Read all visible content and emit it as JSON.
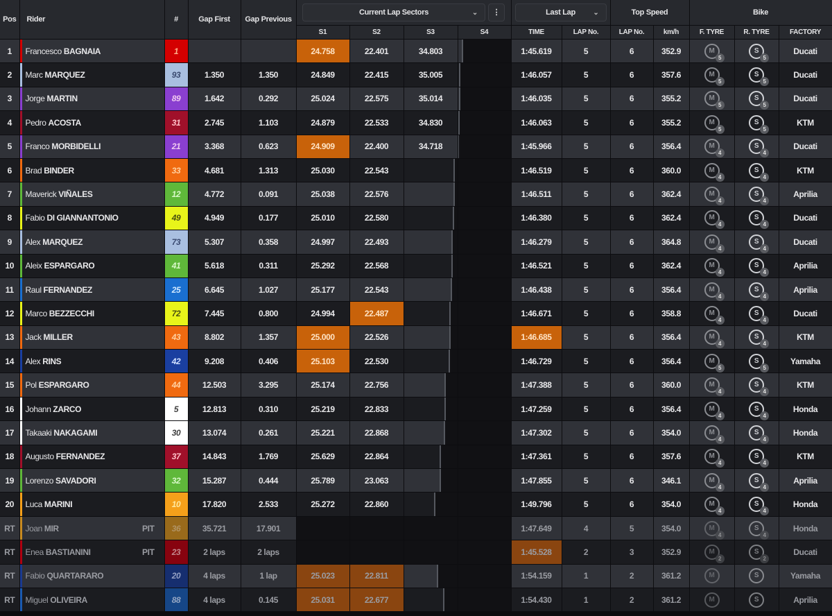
{
  "header": {
    "pos": "Pos",
    "rider": "Rider",
    "number": "#",
    "gap_first": "Gap First",
    "gap_previous": "Gap Previous",
    "sectors_dropdown": "Current Lap Sectors",
    "last_lap_dropdown": "Last Lap",
    "top_speed": "Top Speed",
    "bike": "Bike",
    "s1": "S1",
    "s2": "S2",
    "s3": "S3",
    "s4": "S4",
    "time": "TIME",
    "lap_no": "LAP No.",
    "lap_no_speed": "LAP No.",
    "kmh": "km/h",
    "f_tyre": "F. TYRE",
    "r_tyre": "R. TYRE",
    "factory": "FACTORY"
  },
  "colors": {
    "highlight": "#c8620a",
    "row_odd": "#303238",
    "row_even": "#1b1c20"
  },
  "tyre_letters": {
    "front": "M",
    "rear": "S"
  },
  "rows": [
    {
      "pos": "1",
      "first": "Francesco",
      "last": "BAGNAIA",
      "num": "1",
      "color": "#d40000",
      "numText": "#ffb08a",
      "gap_first": "",
      "gap_prev": "",
      "s1": "24.758",
      "s2": "22.401",
      "s3": "34.803",
      "s4": "",
      "progress_sector": "s4",
      "progress": 0.1,
      "time": "1:45.619",
      "lap": "5",
      "ts_lap": "6",
      "kmh": "352.9",
      "ft": "5",
      "rt": "5",
      "factory": "Ducati",
      "best": [
        "s1"
      ]
    },
    {
      "pos": "2",
      "first": "Marc",
      "last": "MARQUEZ",
      "num": "93",
      "color": "#a9bfe0",
      "numText": "#3a4a70",
      "gap_first": "1.350",
      "gap_prev": "1.350",
      "s1": "24.849",
      "s2": "22.415",
      "s3": "35.005",
      "s4": "",
      "progress_sector": "s4",
      "progress": 0.05,
      "time": "1:46.057",
      "lap": "5",
      "ts_lap": "6",
      "kmh": "357.6",
      "ft": "5",
      "rt": "5",
      "factory": "Ducati",
      "best": []
    },
    {
      "pos": "3",
      "first": "Jorge",
      "last": "MARTIN",
      "num": "89",
      "color": "#8a3fd0",
      "numText": "#f0c8f0",
      "gap_first": "1.642",
      "gap_prev": "0.292",
      "s1": "25.024",
      "s2": "22.575",
      "s3": "35.014",
      "s4": "",
      "progress_sector": "s4",
      "progress": 0.04,
      "time": "1:46.035",
      "lap": "5",
      "ts_lap": "6",
      "kmh": "355.2",
      "ft": "5",
      "rt": "5",
      "factory": "Ducati",
      "best": []
    },
    {
      "pos": "4",
      "first": "Pedro",
      "last": "ACOSTA",
      "num": "31",
      "color": "#a0102a",
      "numText": "#ffc0c8",
      "gap_first": "2.745",
      "gap_prev": "1.103",
      "s1": "24.879",
      "s2": "22.533",
      "s3": "34.830",
      "s4": "",
      "progress_sector": "s4",
      "progress": 0.03,
      "time": "1:46.063",
      "lap": "5",
      "ts_lap": "6",
      "kmh": "355.2",
      "ft": "5",
      "rt": "5",
      "factory": "KTM",
      "best": []
    },
    {
      "pos": "5",
      "first": "Franco",
      "last": "MORBIDELLI",
      "num": "21",
      "color": "#8a3fd0",
      "numText": "#f0c8f0",
      "gap_first": "3.368",
      "gap_prev": "0.623",
      "s1": "24.909",
      "s2": "22.400",
      "s3": "34.718",
      "s4": "",
      "progress_sector": "s4",
      "progress": 0.02,
      "time": "1:45.966",
      "lap": "5",
      "ts_lap": "6",
      "kmh": "356.4",
      "ft": "4",
      "rt": "4",
      "factory": "Ducati",
      "best": [
        "s1"
      ]
    },
    {
      "pos": "6",
      "first": "Brad",
      "last": "BINDER",
      "num": "33",
      "color": "#f06a10",
      "numText": "#ffd0a0",
      "gap_first": "4.681",
      "gap_prev": "1.313",
      "s1": "25.030",
      "s2": "22.543",
      "s3": "",
      "s4": "",
      "progress_sector": "s3",
      "progress": 0.95,
      "time": "1:46.519",
      "lap": "5",
      "ts_lap": "6",
      "kmh": "360.0",
      "ft": "4",
      "rt": "4",
      "factory": "KTM",
      "best": []
    },
    {
      "pos": "7",
      "first": "Maverick",
      "last": "VIÑALES",
      "num": "12",
      "color": "#5fb83a",
      "numText": "#d8f8c8",
      "gap_first": "4.772",
      "gap_prev": "0.091",
      "s1": "25.038",
      "s2": "22.576",
      "s3": "",
      "s4": "",
      "progress_sector": "s3",
      "progress": 0.95,
      "time": "1:46.511",
      "lap": "5",
      "ts_lap": "6",
      "kmh": "362.4",
      "ft": "4",
      "rt": "4",
      "factory": "Aprilia",
      "best": []
    },
    {
      "pos": "8",
      "first": "Fabio",
      "last": "DI GIANNANTONIO",
      "num": "49",
      "color": "#e8f41a",
      "numText": "#4a5010",
      "gap_first": "4.949",
      "gap_prev": "0.177",
      "s1": "25.010",
      "s2": "22.580",
      "s3": "",
      "s4": "",
      "progress_sector": "s3",
      "progress": 0.94,
      "time": "1:46.380",
      "lap": "5",
      "ts_lap": "6",
      "kmh": "362.4",
      "ft": "4",
      "rt": "4",
      "factory": "Ducati",
      "best": []
    },
    {
      "pos": "9",
      "first": "Alex",
      "last": "MARQUEZ",
      "num": "73",
      "color": "#a9bfe0",
      "numText": "#3a4a70",
      "gap_first": "5.307",
      "gap_prev": "0.358",
      "s1": "24.997",
      "s2": "22.493",
      "s3": "",
      "s4": "",
      "progress_sector": "s3",
      "progress": 0.92,
      "time": "1:46.279",
      "lap": "5",
      "ts_lap": "6",
      "kmh": "364.8",
      "ft": "4",
      "rt": "4",
      "factory": "Ducati",
      "best": []
    },
    {
      "pos": "10",
      "first": "Aleix",
      "last": "ESPARGARO",
      "num": "41",
      "color": "#5fb83a",
      "numText": "#d8f8c8",
      "gap_first": "5.618",
      "gap_prev": "0.311",
      "s1": "25.292",
      "s2": "22.568",
      "s3": "",
      "s4": "",
      "progress_sector": "s3",
      "progress": 0.91,
      "time": "1:46.521",
      "lap": "5",
      "ts_lap": "6",
      "kmh": "362.4",
      "ft": "4",
      "rt": "4",
      "factory": "Aprilia",
      "best": []
    },
    {
      "pos": "11",
      "first": "Raul",
      "last": "FERNANDEZ",
      "num": "25",
      "color": "#1a6fd0",
      "numText": "#d0e8ff",
      "gap_first": "6.645",
      "gap_prev": "1.027",
      "s1": "25.177",
      "s2": "22.543",
      "s3": "",
      "s4": "",
      "progress_sector": "s3",
      "progress": 0.9,
      "time": "1:46.438",
      "lap": "5",
      "ts_lap": "6",
      "kmh": "356.4",
      "ft": "4",
      "rt": "4",
      "factory": "Aprilia",
      "best": []
    },
    {
      "pos": "12",
      "first": "Marco",
      "last": "BEZZECCHI",
      "num": "72",
      "color": "#e8f41a",
      "numText": "#4a5010",
      "gap_first": "7.445",
      "gap_prev": "0.800",
      "s1": "24.994",
      "s2": "22.487",
      "s3": "",
      "s4": "",
      "progress_sector": "s3",
      "progress": 0.88,
      "time": "1:46.671",
      "lap": "5",
      "ts_lap": "6",
      "kmh": "358.8",
      "ft": "4",
      "rt": "4",
      "factory": "Ducati",
      "best": [
        "s2"
      ]
    },
    {
      "pos": "13",
      "first": "Jack",
      "last": "MILLER",
      "num": "43",
      "color": "#f06a10",
      "numText": "#ffd0a0",
      "gap_first": "8.802",
      "gap_prev": "1.357",
      "s1": "25.000",
      "s2": "22.526",
      "s3": "",
      "s4": "",
      "progress_sector": "s3",
      "progress": 0.87,
      "time": "1:46.685",
      "lap": "5",
      "ts_lap": "6",
      "kmh": "356.4",
      "ft": "4",
      "rt": "4",
      "factory": "KTM",
      "best": [
        "s1",
        "time"
      ]
    },
    {
      "pos": "14",
      "first": "Alex",
      "last": "RINS",
      "num": "42",
      "color": "#1a3fa0",
      "numText": "#d0e0ff",
      "gap_first": "9.208",
      "gap_prev": "0.406",
      "s1": "25.103",
      "s2": "22.530",
      "s3": "",
      "s4": "",
      "progress_sector": "s3",
      "progress": 0.86,
      "time": "1:46.729",
      "lap": "5",
      "ts_lap": "6",
      "kmh": "356.4",
      "ft": "5",
      "rt": "5",
      "factory": "Yamaha",
      "best": [
        "s1"
      ]
    },
    {
      "pos": "15",
      "first": "Pol",
      "last": "ESPARGARO",
      "num": "44",
      "color": "#f06a10",
      "numText": "#ffd0a0",
      "gap_first": "12.503",
      "gap_prev": "3.295",
      "s1": "25.174",
      "s2": "22.756",
      "s3": "",
      "s4": "",
      "progress_sector": "s3",
      "progress": 0.79,
      "time": "1:47.388",
      "lap": "5",
      "ts_lap": "6",
      "kmh": "360.0",
      "ft": "4",
      "rt": "4",
      "factory": "KTM",
      "best": []
    },
    {
      "pos": "16",
      "first": "Johann",
      "last": "ZARCO",
      "num": "5",
      "color": "#ffffff",
      "numText": "#404040",
      "gap_first": "12.813",
      "gap_prev": "0.310",
      "s1": "25.219",
      "s2": "22.833",
      "s3": "",
      "s4": "",
      "progress_sector": "s3",
      "progress": 0.79,
      "time": "1:47.259",
      "lap": "5",
      "ts_lap": "6",
      "kmh": "356.4",
      "ft": "4",
      "rt": "4",
      "factory": "Honda",
      "best": []
    },
    {
      "pos": "17",
      "first": "Takaaki",
      "last": "NAKAGAMI",
      "num": "30",
      "color": "#ffffff",
      "numText": "#404040",
      "gap_first": "13.074",
      "gap_prev": "0.261",
      "s1": "25.221",
      "s2": "22.868",
      "s3": "",
      "s4": "",
      "progress_sector": "s3",
      "progress": 0.77,
      "time": "1:47.302",
      "lap": "5",
      "ts_lap": "6",
      "kmh": "354.0",
      "ft": "4",
      "rt": "4",
      "factory": "Honda",
      "best": []
    },
    {
      "pos": "18",
      "first": "Augusto",
      "last": "FERNANDEZ",
      "num": "37",
      "color": "#a0102a",
      "numText": "#ffc0c8",
      "gap_first": "14.843",
      "gap_prev": "1.769",
      "s1": "25.629",
      "s2": "22.864",
      "s3": "",
      "s4": "",
      "progress_sector": "s3",
      "progress": 0.69,
      "time": "1:47.361",
      "lap": "5",
      "ts_lap": "6",
      "kmh": "357.6",
      "ft": "4",
      "rt": "4",
      "factory": "KTM",
      "best": []
    },
    {
      "pos": "19",
      "first": "Lorenzo",
      "last": "SAVADORI",
      "num": "32",
      "color": "#5fb83a",
      "numText": "#d8f8c8",
      "gap_first": "15.287",
      "gap_prev": "0.444",
      "s1": "25.789",
      "s2": "23.063",
      "s3": "",
      "s4": "",
      "progress_sector": "s3",
      "progress": 0.69,
      "time": "1:47.855",
      "lap": "5",
      "ts_lap": "6",
      "kmh": "346.1",
      "ft": "4",
      "rt": "4",
      "factory": "Aprilia",
      "best": []
    },
    {
      "pos": "20",
      "first": "Luca",
      "last": "MARINI",
      "num": "10",
      "color": "#f5a01a",
      "numText": "#ffe8a0",
      "gap_first": "17.820",
      "gap_prev": "2.533",
      "s1": "25.272",
      "s2": "22.860",
      "s3": "",
      "s4": "",
      "progress_sector": "s3",
      "progress": 0.59,
      "time": "1:49.796",
      "lap": "5",
      "ts_lap": "6",
      "kmh": "354.0",
      "ft": "4",
      "rt": "4",
      "factory": "Honda",
      "best": []
    },
    {
      "pos": "RT",
      "first": "Joan",
      "last": "MIR",
      "pit": "PIT",
      "num": "36",
      "color": "#c88a20",
      "numText": "#e8c080",
      "gap_first": "35.721",
      "gap_prev": "17.901",
      "s1": "",
      "s2": "",
      "s3": "",
      "s4": "",
      "progress_sector": "",
      "progress": 0,
      "time": "1:47.649",
      "lap": "4",
      "ts_lap": "5",
      "kmh": "354.0",
      "ft": "4",
      "rt": "4",
      "factory": "Honda",
      "best": [],
      "retired": true
    },
    {
      "pos": "RT",
      "first": "Enea",
      "last": "BASTIANINI",
      "pit": "PIT",
      "num": "23",
      "color": "#b00010",
      "numText": "#ffb0b8",
      "gap_first": "2 laps",
      "gap_prev": "2 laps",
      "s1": "",
      "s2": "",
      "s3": "",
      "s4": "",
      "progress_sector": "",
      "progress": 0,
      "time": "1:45.528",
      "lap": "2",
      "ts_lap": "3",
      "kmh": "352.9",
      "ft": "2",
      "rt": "2",
      "factory": "Ducati",
      "best": [
        "time"
      ],
      "retired": true
    },
    {
      "pos": "RT",
      "first": "Fabio",
      "last": "QUARTARARO",
      "num": "20",
      "color": "#1a3a90",
      "numText": "#c0d0ff",
      "gap_first": "4 laps",
      "gap_prev": "1 lap",
      "s1": "25.023",
      "s2": "22.811",
      "s3": "",
      "s4": "",
      "progress_sector": "s3",
      "progress": 0.64,
      "time": "1:54.159",
      "lap": "1",
      "ts_lap": "2",
      "kmh": "361.2",
      "ft": "",
      "rt": "",
      "factory": "Yamaha",
      "best": [
        "s1",
        "s2"
      ],
      "retired": true
    },
    {
      "pos": "RT",
      "first": "Miguel",
      "last": "OLIVEIRA",
      "num": "88",
      "color": "#1a5ab0",
      "numText": "#c0d8ff",
      "gap_first": "4 laps",
      "gap_prev": "0.145",
      "s1": "25.031",
      "s2": "22.677",
      "s3": "",
      "s4": "",
      "progress_sector": "s3",
      "progress": 0.76,
      "time": "1:54.430",
      "lap": "1",
      "ts_lap": "2",
      "kmh": "361.2",
      "ft": "",
      "rt": "",
      "factory": "Aprilia",
      "best": [
        "s1",
        "s2"
      ],
      "retired": true
    }
  ]
}
